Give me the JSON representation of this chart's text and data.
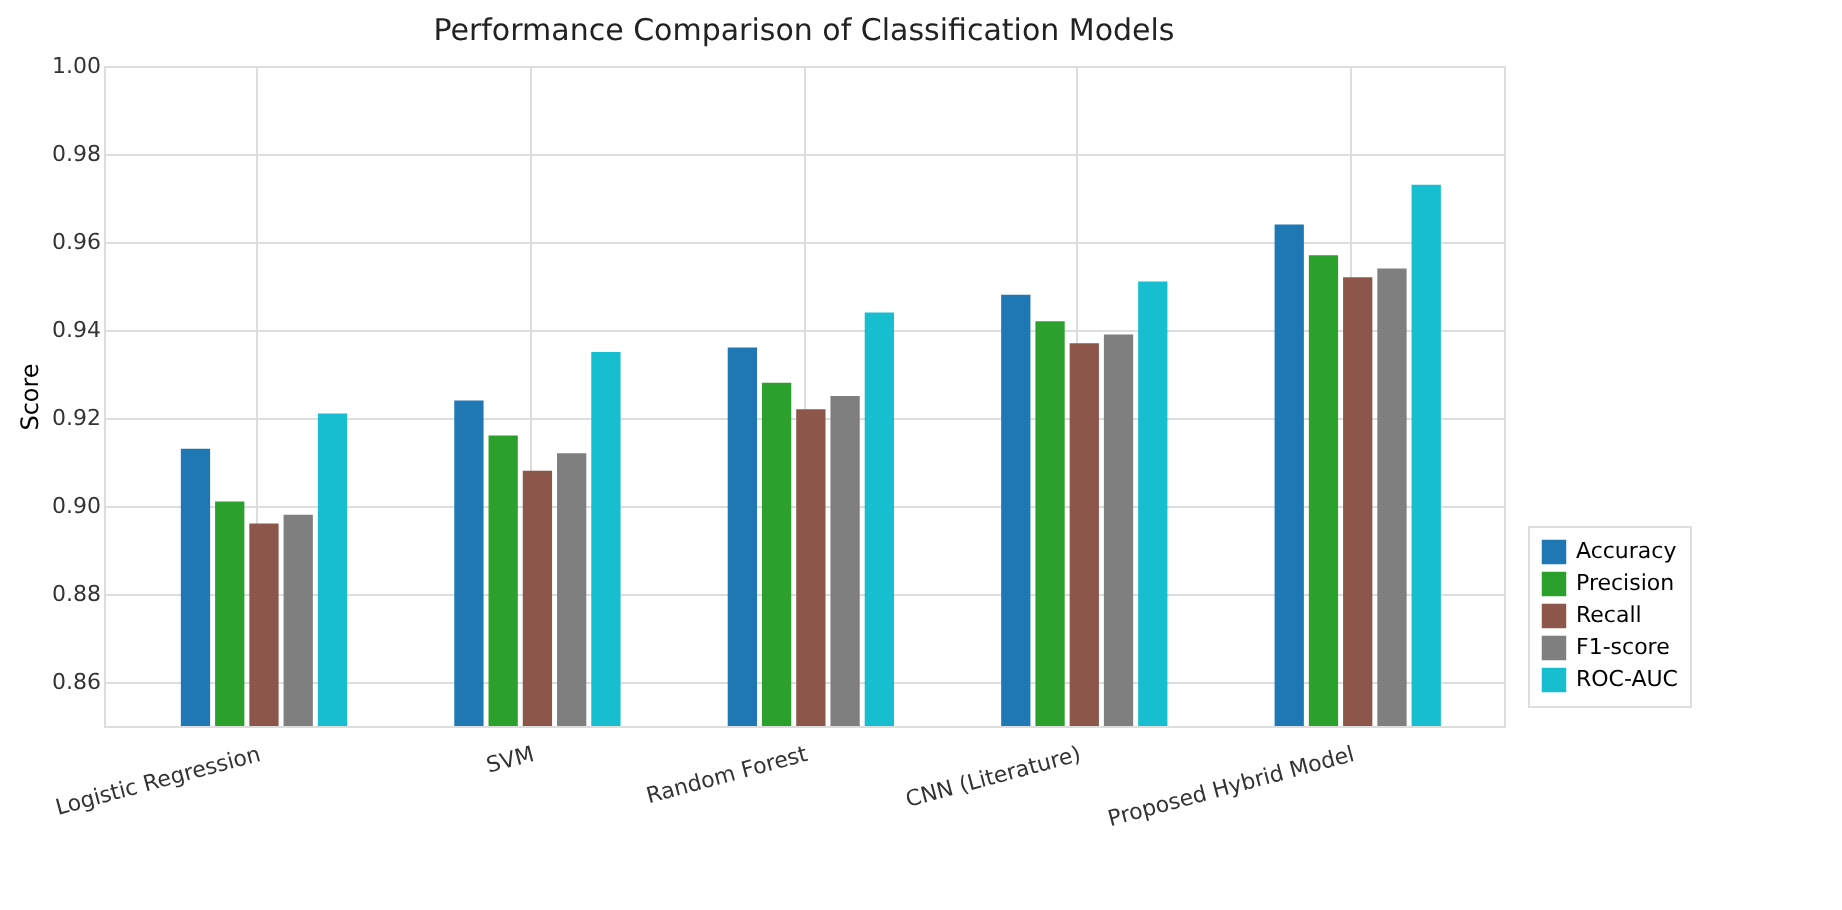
{
  "chart_data": {
    "type": "bar",
    "title": "Performance Comparison of Classification Models",
    "ylabel": "Score",
    "categories": [
      "Logistic Regression",
      "SVM",
      "Random Forest",
      "CNN (Literature)",
      "Proposed Hybrid Model"
    ],
    "series": [
      {
        "name": "Accuracy",
        "color": "#1f77b4",
        "values": [
          0.913,
          0.924,
          0.936,
          0.948,
          0.964
        ]
      },
      {
        "name": "Precision",
        "color": "#2ca02c",
        "values": [
          0.901,
          0.916,
          0.928,
          0.942,
          0.957
        ]
      },
      {
        "name": "Recall",
        "color": "#8c564b",
        "values": [
          0.896,
          0.908,
          0.922,
          0.937,
          0.952
        ]
      },
      {
        "name": "F1-score",
        "color": "#7f7f7f",
        "values": [
          0.898,
          0.912,
          0.925,
          0.939,
          0.954
        ]
      },
      {
        "name": "ROC-AUC",
        "color": "#17becf",
        "values": [
          0.921,
          0.935,
          0.944,
          0.951,
          0.973
        ]
      }
    ],
    "ylim": [
      0.85,
      1.0
    ],
    "yticks": [
      0.86,
      0.88,
      {
        "value": 0.9,
        "label": "0.90"
      },
      0.92,
      0.94,
      0.96,
      0.98,
      {
        "value": 1.0,
        "label": "1.00"
      }
    ],
    "grid": true,
    "legend": "bottom right"
  }
}
